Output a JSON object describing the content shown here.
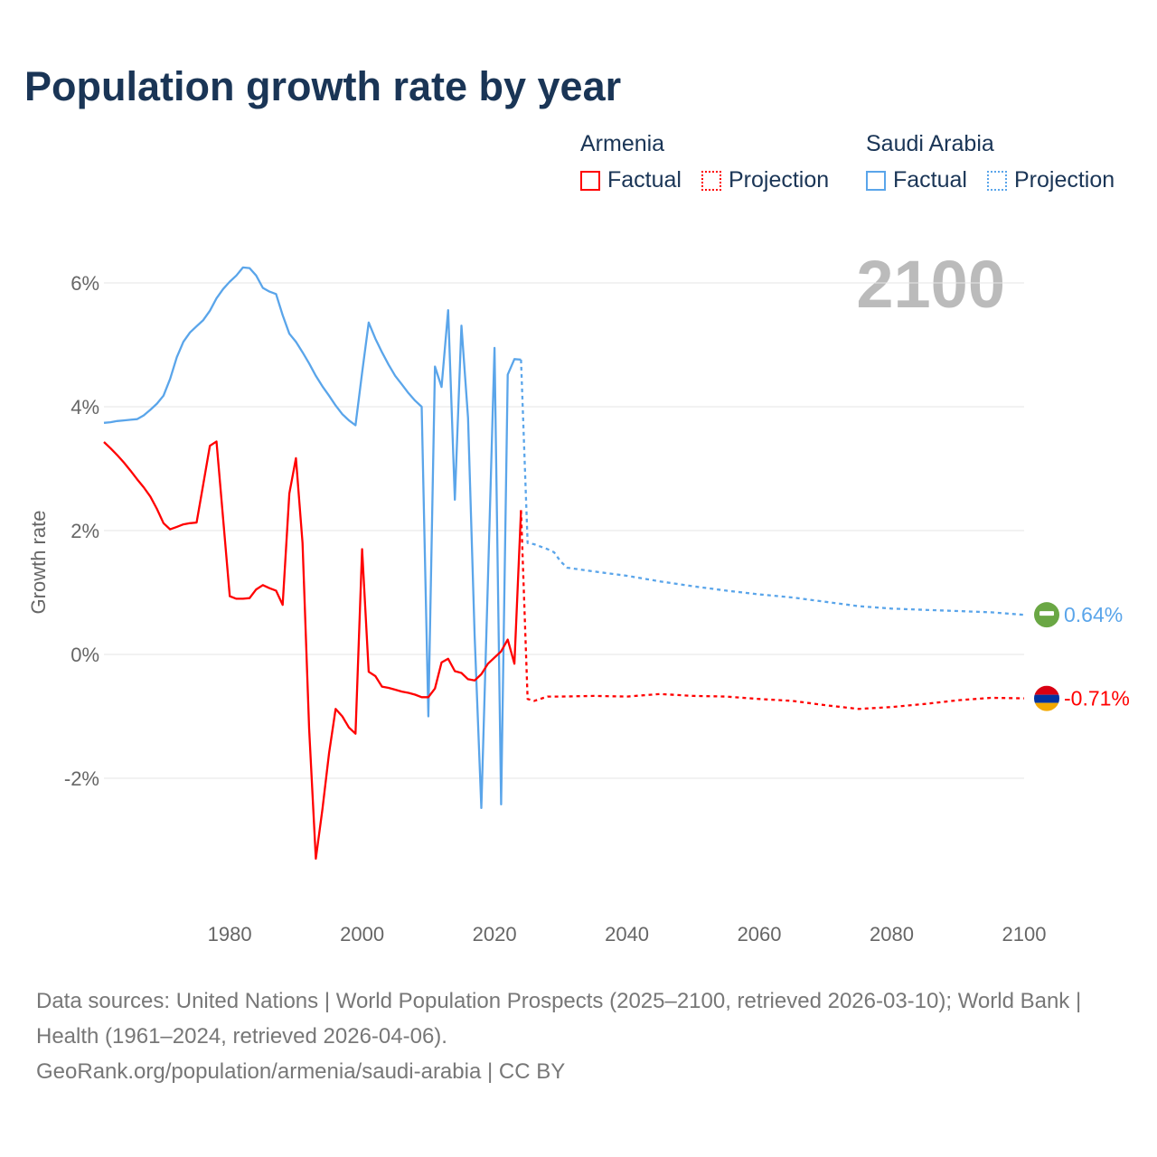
{
  "title": "Population growth rate by year",
  "current_year": "2100",
  "legend": {
    "groups": [
      {
        "name": "Armenia",
        "factual": "Factual",
        "projection": "Projection",
        "color": "#ff0000"
      },
      {
        "name": "Saudi Arabia",
        "factual": "Factual",
        "projection": "Projection",
        "color": "#5aa5ea"
      }
    ]
  },
  "end_labels": {
    "saudi": "0.64%",
    "armenia": "-0.71%"
  },
  "source": {
    "line1": "Data sources: United Nations | World Population Prospects (2025–2100, retrieved 2026-03-10); World Bank | Health (1961–2024, retrieved 2026-04-06).",
    "line2": "GeoRank.org/population/armenia/saudi-arabia | CC BY"
  },
  "chart_data": {
    "type": "line",
    "title": "Population growth rate by year",
    "xlabel": "",
    "ylabel": "Growth rate",
    "xlim": [
      1961,
      2100
    ],
    "ylim": [
      -4.2,
      6.6
    ],
    "x_ticks": [
      1980,
      2000,
      2020,
      2040,
      2060,
      2080,
      2100
    ],
    "y_ticks": [
      {
        "v": 6,
        "label": "6%"
      },
      {
        "v": 4,
        "label": "4%"
      },
      {
        "v": 2,
        "label": "2%"
      },
      {
        "v": 0,
        "label": "0%"
      },
      {
        "v": -2,
        "label": "-2%"
      }
    ],
    "grid": true,
    "series": [
      {
        "name": "Saudi Arabia",
        "kind": "factual",
        "color": "#5aa5ea",
        "x": [
          1961,
          1962,
          1963,
          1964,
          1965,
          1966,
          1967,
          1968,
          1969,
          1970,
          1971,
          1972,
          1973,
          1974,
          1975,
          1976,
          1977,
          1978,
          1979,
          1980,
          1981,
          1982,
          1983,
          1984,
          1985,
          1986,
          1987,
          1988,
          1989,
          1990,
          1991,
          1992,
          1993,
          1994,
          1995,
          1996,
          1997,
          1998,
          1999,
          2000,
          2001,
          2002,
          2003,
          2004,
          2005,
          2006,
          2007,
          2008,
          2009,
          2010,
          2011,
          2012,
          2013,
          2014,
          2015,
          2016,
          2017,
          2018,
          2019,
          2020,
          2021,
          2022,
          2023,
          2024
        ],
        "y": [
          3.74,
          3.75,
          3.77,
          3.78,
          3.79,
          3.8,
          3.86,
          3.95,
          4.05,
          4.18,
          4.45,
          4.8,
          5.05,
          5.2,
          5.3,
          5.4,
          5.55,
          5.75,
          5.9,
          6.02,
          6.12,
          6.25,
          6.24,
          6.12,
          5.92,
          5.86,
          5.82,
          5.48,
          5.18,
          5.05,
          4.88,
          4.7,
          4.5,
          4.33,
          4.18,
          4.02,
          3.88,
          3.78,
          3.7,
          4.55,
          5.36,
          5.1,
          4.88,
          4.68,
          4.5,
          4.36,
          4.22,
          4.1,
          4.0,
          -1.0,
          4.65,
          4.32,
          5.56,
          2.5,
          5.31,
          3.82,
          0.3,
          -2.48,
          1.2,
          4.95,
          -2.42,
          4.52,
          4.77,
          4.76
        ]
      },
      {
        "name": "Saudi Arabia",
        "kind": "projection",
        "color": "#5aa5ea",
        "x": [
          2024,
          2025,
          2026,
          2028,
          2029,
          2030,
          2031,
          2035,
          2040,
          2045,
          2050,
          2055,
          2060,
          2065,
          2070,
          2075,
          2080,
          2085,
          2090,
          2095,
          2100
        ],
        "y": [
          4.76,
          1.8,
          1.78,
          1.7,
          1.65,
          1.5,
          1.4,
          1.34,
          1.27,
          1.18,
          1.1,
          1.03,
          0.97,
          0.92,
          0.85,
          0.78,
          0.74,
          0.72,
          0.7,
          0.68,
          0.64
        ]
      },
      {
        "name": "Armenia",
        "kind": "factual",
        "color": "#ff0000",
        "x": [
          1961,
          1962,
          1963,
          1964,
          1965,
          1966,
          1967,
          1968,
          1969,
          1970,
          1971,
          1972,
          1973,
          1974,
          1975,
          1976,
          1977,
          1978,
          1979,
          1980,
          1981,
          1982,
          1983,
          1984,
          1985,
          1986,
          1987,
          1988,
          1989,
          1990,
          1991,
          1992,
          1993,
          1994,
          1995,
          1996,
          1997,
          1998,
          1999,
          2000,
          2001,
          2002,
          2003,
          2004,
          2005,
          2006,
          2007,
          2008,
          2009,
          2010,
          2011,
          2012,
          2013,
          2014,
          2015,
          2016,
          2017,
          2018,
          2019,
          2020,
          2021,
          2022,
          2023,
          2024
        ],
        "y": [
          3.43,
          3.33,
          3.22,
          3.1,
          2.97,
          2.83,
          2.7,
          2.55,
          2.35,
          2.12,
          2.02,
          2.06,
          2.1,
          2.12,
          2.13,
          2.75,
          3.37,
          3.44,
          2.2,
          0.94,
          0.9,
          0.9,
          0.91,
          1.05,
          1.12,
          1.07,
          1.03,
          0.8,
          2.6,
          3.17,
          1.8,
          -1.2,
          -3.3,
          -2.5,
          -1.6,
          -0.88,
          -1.0,
          -1.18,
          -1.28,
          1.7,
          -0.28,
          -0.35,
          -0.52,
          -0.54,
          -0.57,
          -0.6,
          -0.62,
          -0.65,
          -0.69,
          -0.69,
          -0.55,
          -0.13,
          -0.07,
          -0.27,
          -0.3,
          -0.4,
          -0.42,
          -0.32,
          -0.15,
          -0.05,
          0.05,
          0.24,
          -0.15,
          2.33
        ]
      },
      {
        "name": "Armenia",
        "kind": "projection",
        "color": "#ff0000",
        "x": [
          2024,
          2025,
          2026,
          2028,
          2030,
          2035,
          2040,
          2045,
          2050,
          2055,
          2060,
          2065,
          2070,
          2075,
          2080,
          2085,
          2090,
          2095,
          2100
        ],
        "y": [
          2.33,
          -0.72,
          -0.75,
          -0.68,
          -0.68,
          -0.67,
          -0.68,
          -0.64,
          -0.67,
          -0.68,
          -0.72,
          -0.75,
          -0.82,
          -0.88,
          -0.85,
          -0.8,
          -0.74,
          -0.7,
          -0.71
        ]
      }
    ]
  }
}
